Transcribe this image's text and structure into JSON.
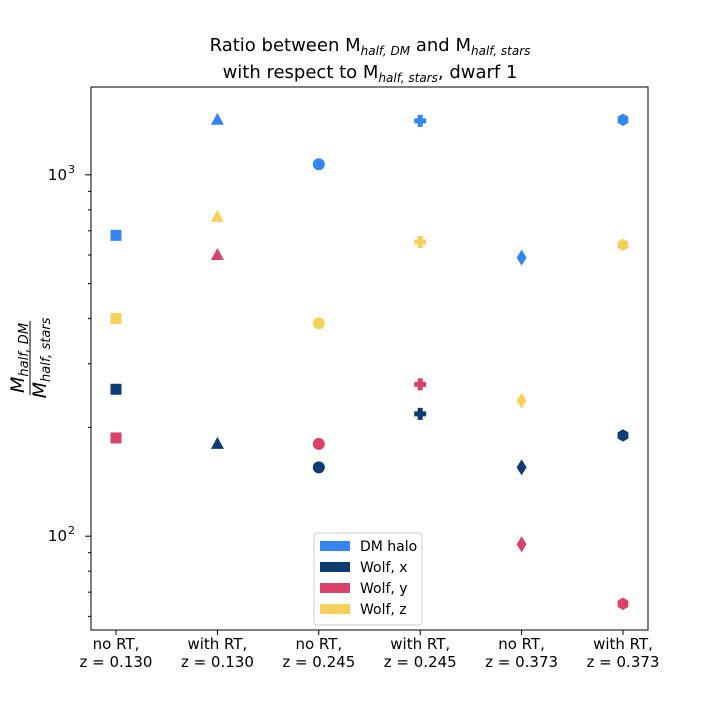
{
  "chart_data": {
    "type": "scatter",
    "title_line1": {
      "pre": "Ratio between M",
      "sub1": "half, DM",
      "mid": " and M",
      "sub2": "half, stars"
    },
    "title_line2": {
      "pre": "with respect to M",
      "sub": "half, stars",
      "post": ", dwarf 1"
    },
    "ylabel": {
      "num_base": "M",
      "num_sub": "half, DM",
      "den_base": "M",
      "den_sub": "half, stars"
    },
    "yscale": "log",
    "ylim": [
      55,
      1750
    ],
    "yticks": [
      {
        "value": 100,
        "base": "10",
        "exp": "2"
      },
      {
        "value": 1000,
        "base": "10",
        "exp": "3"
      }
    ],
    "categories": [
      {
        "line1": "no RT,",
        "line2": "z = 0.130",
        "marker": "square"
      },
      {
        "line1": "with RT,",
        "line2": "z = 0.130",
        "marker": "triangle"
      },
      {
        "line1": "no RT,",
        "line2": "z = 0.245",
        "marker": "circle"
      },
      {
        "line1": "with RT,",
        "line2": "z = 0.245",
        "marker": "plus"
      },
      {
        "line1": "no RT,",
        "line2": "z = 0.373",
        "marker": "diamond"
      },
      {
        "line1": "with RT,",
        "line2": "z = 0.373",
        "marker": "hexagon"
      }
    ],
    "series": [
      {
        "name": "DM halo",
        "color": "#3385f0",
        "values": [
          680,
          1420,
          1070,
          1410,
          590,
          1420
        ]
      },
      {
        "name": "Wolf, x",
        "color": "#0d3b73",
        "values": [
          255,
          180,
          155,
          218,
          155,
          190
        ]
      },
      {
        "name": "Wolf, y",
        "color": "#d94269",
        "values": [
          187,
          600,
          180,
          263,
          95,
          65
        ]
      },
      {
        "name": "Wolf, z",
        "color": "#f5d15c",
        "values": [
          400,
          765,
          388,
          652,
          237,
          640
        ]
      }
    ],
    "legend_position": "lower-center"
  }
}
